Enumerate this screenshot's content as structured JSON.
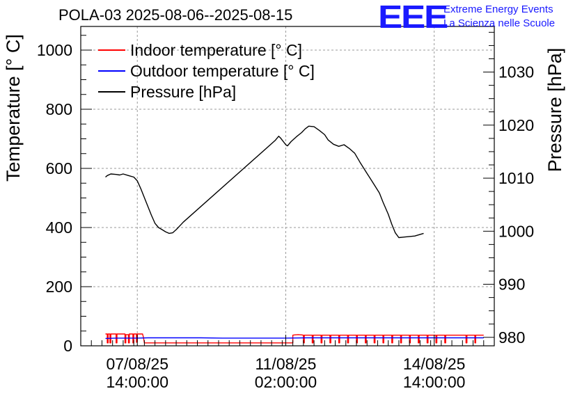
{
  "header": {
    "title": "POLA-03 2025-08-06--2025-08-15",
    "logo_mark": "EEE",
    "logo_line1": "Extreme Energy Events",
    "logo_line2": "La Scienza nelle Scuole"
  },
  "colors": {
    "indoor": "#ff0000",
    "outdoor": "#0000ff",
    "pressure": "#000000",
    "logo": "#1a1aff",
    "grid": "#999999"
  },
  "chart_data": {
    "type": "line",
    "ylabel": "Temperature [° C]",
    "y2label": "Pressure [hPa]",
    "ylim": [
      0,
      1080
    ],
    "y2lim": [
      978.4,
      1038.6
    ],
    "ytick_values": [
      0,
      200,
      400,
      600,
      800,
      1000
    ],
    "ytick_labels": [
      "0",
      "200",
      "400",
      "600",
      "800",
      "1000"
    ],
    "y2tick_values": [
      980,
      990,
      1000,
      1010,
      1020,
      1030
    ],
    "y2tick_labels": [
      "980",
      "990",
      "1000",
      "1010",
      "1020",
      "1030"
    ],
    "xlim": [
      "2025-08-06 06:00",
      "2025-08-16 00:00"
    ],
    "xtick_values": [
      "2025-08-07 14:00",
      "2025-08-11 02:00",
      "2025-08-14 14:00"
    ],
    "xtick_labels": [
      [
        "07/08/25",
        "14:00:00"
      ],
      [
        "11/08/25",
        "02:00:00"
      ],
      [
        "14/08/25",
        "14:00:00"
      ]
    ],
    "grid": true,
    "legend_position": "top-left",
    "series": [
      {
        "name": "Indoor temperature [° C]",
        "axis": "left",
        "points": [
          [
            "2025-08-06 20:00",
            40
          ],
          [
            "2025-08-06 21:00",
            40
          ],
          [
            "2025-08-06 21:00",
            10
          ],
          [
            "2025-08-06 21:30",
            10
          ],
          [
            "2025-08-06 21:30",
            40
          ],
          [
            "2025-08-06 22:30",
            40
          ],
          [
            "2025-08-06 22:30",
            10
          ],
          [
            "2025-08-06 23:00",
            10
          ],
          [
            "2025-08-06 23:00",
            40
          ],
          [
            "2025-08-07 02:00",
            40
          ],
          [
            "2025-08-07 02:00",
            10
          ],
          [
            "2025-08-07 02:30",
            10
          ],
          [
            "2025-08-07 02:30",
            40
          ],
          [
            "2025-08-07 07:00",
            40
          ],
          [
            "2025-08-07 07:00",
            10
          ],
          [
            "2025-08-07 07:30",
            10
          ],
          [
            "2025-08-07 07:30",
            38
          ],
          [
            "2025-08-07 09:00",
            38
          ],
          [
            "2025-08-07 09:00",
            10
          ],
          [
            "2025-08-07 09:30",
            10
          ],
          [
            "2025-08-07 09:30",
            40
          ],
          [
            "2025-08-07 11:30",
            40
          ],
          [
            "2025-08-07 11:30",
            10
          ],
          [
            "2025-08-07 12:00",
            10
          ],
          [
            "2025-08-07 12:00",
            40
          ],
          [
            "2025-08-07 13:30",
            40
          ],
          [
            "2025-08-07 13:30",
            12
          ],
          [
            "2025-08-07 14:00",
            12
          ],
          [
            "2025-08-07 14:00",
            40
          ],
          [
            "2025-08-07 17:00",
            40
          ],
          [
            "2025-08-07 17:30",
            28
          ],
          [
            "2025-08-07 18:00",
            10
          ],
          [
            "2025-08-11 06:00",
            10
          ],
          [
            "2025-08-11 06:00",
            36
          ],
          [
            "2025-08-11 07:00",
            37
          ],
          [
            "2025-08-11 09:00",
            38
          ],
          [
            "2025-08-11 11:00",
            37
          ],
          [
            "2025-08-11 12:00",
            36
          ],
          [
            "2025-08-11 12:00",
            10
          ],
          [
            "2025-08-11 12:30",
            10
          ],
          [
            "2025-08-11 12:30",
            36
          ],
          [
            "2025-08-11 17:00",
            36
          ],
          [
            "2025-08-11 17:00",
            10
          ],
          [
            "2025-08-11 17:30",
            10
          ],
          [
            "2025-08-11 17:30",
            36
          ],
          [
            "2025-08-11 22:00",
            36
          ],
          [
            "2025-08-11 22:00",
            10
          ],
          [
            "2025-08-11 22:30",
            10
          ],
          [
            "2025-08-11 22:30",
            36
          ],
          [
            "2025-08-12 03:00",
            36
          ],
          [
            "2025-08-12 03:00",
            10
          ],
          [
            "2025-08-12 03:30",
            10
          ],
          [
            "2025-08-12 03:30",
            36
          ],
          [
            "2025-08-12 08:00",
            36
          ],
          [
            "2025-08-12 08:00",
            10
          ],
          [
            "2025-08-12 08:30",
            10
          ],
          [
            "2025-08-12 08:30",
            36
          ],
          [
            "2025-08-12 13:00",
            36
          ],
          [
            "2025-08-12 13:00",
            10
          ],
          [
            "2025-08-12 13:30",
            10
          ],
          [
            "2025-08-12 13:30",
            36
          ],
          [
            "2025-08-12 18:00",
            36
          ],
          [
            "2025-08-12 18:00",
            10
          ],
          [
            "2025-08-12 18:30",
            10
          ],
          [
            "2025-08-12 18:30",
            36
          ],
          [
            "2025-08-12 23:00",
            36
          ],
          [
            "2025-08-12 23:00",
            10
          ],
          [
            "2025-08-12 23:30",
            10
          ],
          [
            "2025-08-12 23:30",
            36
          ],
          [
            "2025-08-13 04:00",
            36
          ],
          [
            "2025-08-13 04:00",
            10
          ],
          [
            "2025-08-13 04:30",
            10
          ],
          [
            "2025-08-13 04:30",
            36
          ],
          [
            "2025-08-13 09:00",
            36
          ],
          [
            "2025-08-13 09:00",
            10
          ],
          [
            "2025-08-13 09:30",
            10
          ],
          [
            "2025-08-13 09:30",
            36
          ],
          [
            "2025-08-13 14:00",
            36
          ],
          [
            "2025-08-13 14:00",
            10
          ],
          [
            "2025-08-13 14:30",
            10
          ],
          [
            "2025-08-13 14:30",
            36
          ],
          [
            "2025-08-13 19:00",
            36
          ],
          [
            "2025-08-13 19:00",
            10
          ],
          [
            "2025-08-13 19:30",
            10
          ],
          [
            "2025-08-13 19:30",
            36
          ],
          [
            "2025-08-14 00:00",
            36
          ],
          [
            "2025-08-14 00:00",
            10
          ],
          [
            "2025-08-14 00:30",
            10
          ],
          [
            "2025-08-14 00:30",
            36
          ],
          [
            "2025-08-14 05:00",
            36
          ],
          [
            "2025-08-14 05:00",
            10
          ],
          [
            "2025-08-14 05:30",
            10
          ],
          [
            "2025-08-14 05:30",
            36
          ],
          [
            "2025-08-14 10:00",
            36
          ],
          [
            "2025-08-14 10:00",
            10
          ],
          [
            "2025-08-14 10:30",
            10
          ],
          [
            "2025-08-14 10:30",
            36
          ],
          [
            "2025-08-14 15:00",
            36
          ],
          [
            "2025-08-14 15:00",
            10
          ],
          [
            "2025-08-14 15:30",
            10
          ],
          [
            "2025-08-14 15:30",
            36
          ],
          [
            "2025-08-14 20:00",
            36
          ],
          [
            "2025-08-14 20:00",
            10
          ],
          [
            "2025-08-14 20:30",
            10
          ],
          [
            "2025-08-14 20:30",
            36
          ],
          [
            "2025-08-15 08:00",
            36
          ],
          [
            "2025-08-15 08:00",
            10
          ],
          [
            "2025-08-15 08:30",
            10
          ],
          [
            "2025-08-15 08:30",
            36
          ],
          [
            "2025-08-15 13:00",
            36
          ],
          [
            "2025-08-15 13:00",
            10
          ],
          [
            "2025-08-15 13:30",
            10
          ],
          [
            "2025-08-15 13:30",
            36
          ],
          [
            "2025-08-15 18:00",
            36
          ]
        ]
      },
      {
        "name": "Outdoor temperature [° C]",
        "axis": "left",
        "points": [
          [
            "2025-08-06 20:00",
            25
          ],
          [
            "2025-08-07 02:00",
            26
          ],
          [
            "2025-08-07 08:00",
            26
          ],
          [
            "2025-08-07 14:00",
            26
          ],
          [
            "2025-08-07 20:00",
            27
          ],
          [
            "2025-08-08 02:00",
            27
          ],
          [
            "2025-08-08 14:00",
            27
          ],
          [
            "2025-08-09 02:00",
            27
          ],
          [
            "2025-08-09 14:00",
            26
          ],
          [
            "2025-08-10 02:00",
            26
          ],
          [
            "2025-08-10 14:00",
            26
          ],
          [
            "2025-08-11 02:00",
            26
          ],
          [
            "2025-08-11 14:00",
            27
          ],
          [
            "2025-08-12 02:00",
            27
          ],
          [
            "2025-08-12 14:00",
            27
          ],
          [
            "2025-08-13 02:00",
            27
          ],
          [
            "2025-08-13 14:00",
            27
          ],
          [
            "2025-08-14 02:00",
            27
          ],
          [
            "2025-08-14 14:00",
            27
          ],
          [
            "2025-08-15 02:00",
            27
          ],
          [
            "2025-08-15 18:00",
            27
          ]
        ]
      },
      {
        "name": "Pressure [hPa]",
        "axis": "right",
        "points": [
          [
            "2025-08-06 20:00",
            1010.2
          ],
          [
            "2025-08-06 21:00",
            1010.5
          ],
          [
            "2025-08-06 23:00",
            1010.8
          ],
          [
            "2025-08-07 02:00",
            1010.7
          ],
          [
            "2025-08-07 04:00",
            1010.6
          ],
          [
            "2025-08-07 06:00",
            1010.8
          ],
          [
            "2025-08-07 09:00",
            1010.5
          ],
          [
            "2025-08-07 12:00",
            1010.2
          ],
          [
            "2025-08-07 14:00",
            1009.5
          ],
          [
            "2025-08-07 16:00",
            1008.0
          ],
          [
            "2025-08-07 19:00",
            1005.5
          ],
          [
            "2025-08-07 22:00",
            1003.0
          ],
          [
            "2025-08-08 00:00",
            1001.5
          ],
          [
            "2025-08-08 02:00",
            1000.7
          ],
          [
            "2025-08-08 04:00",
            1000.3
          ],
          [
            "2025-08-08 06:00",
            999.9
          ],
          [
            "2025-08-08 08:00",
            999.6
          ],
          [
            "2025-08-08 10:00",
            999.7
          ],
          [
            "2025-08-08 12:00",
            1000.3
          ],
          [
            "2025-08-08 14:00",
            1001.0
          ],
          [
            "2025-08-08 16:00",
            1001.7
          ],
          [
            "2025-08-10 20:00",
            1017.1
          ],
          [
            "2025-08-10 22:00",
            1017.9
          ],
          [
            "2025-08-10 23:00",
            1017.6
          ],
          [
            "2025-08-11 02:00",
            1016.3
          ],
          [
            "2025-08-11 03:00",
            1016.1
          ],
          [
            "2025-08-11 05:00",
            1016.9
          ],
          [
            "2025-08-11 08:00",
            1017.8
          ],
          [
            "2025-08-11 11:00",
            1018.6
          ],
          [
            "2025-08-11 13:00",
            1019.3
          ],
          [
            "2025-08-11 15:00",
            1019.8
          ],
          [
            "2025-08-11 18:00",
            1019.7
          ],
          [
            "2025-08-11 21:00",
            1019.0
          ],
          [
            "2025-08-12 00:00",
            1018.2
          ],
          [
            "2025-08-12 02:00",
            1017.2
          ],
          [
            "2025-08-12 05:00",
            1016.4
          ],
          [
            "2025-08-12 08:00",
            1016.0
          ],
          [
            "2025-08-12 11:00",
            1016.3
          ],
          [
            "2025-08-12 14:00",
            1015.6
          ],
          [
            "2025-08-12 17:00",
            1014.7
          ],
          [
            "2025-08-12 20:00",
            1013.0
          ],
          [
            "2025-08-13 00:00",
            1010.9
          ],
          [
            "2025-08-13 04:00",
            1008.8
          ],
          [
            "2025-08-13 07:00",
            1007.2
          ],
          [
            "2025-08-13 09:00",
            1005.5
          ],
          [
            "2025-08-13 12:00",
            1003.2
          ],
          [
            "2025-08-13 14:00",
            1001.3
          ],
          [
            "2025-08-13 16:00",
            999.7
          ],
          [
            "2025-08-13 18:00",
            998.8
          ],
          [
            "2025-08-13 21:00",
            998.9
          ],
          [
            "2025-08-14 00:00",
            999.0
          ],
          [
            "2025-08-14 03:00",
            999.1
          ],
          [
            "2025-08-14 06:00",
            999.4
          ],
          [
            "2025-08-14 08:00",
            999.6
          ]
        ]
      }
    ]
  }
}
